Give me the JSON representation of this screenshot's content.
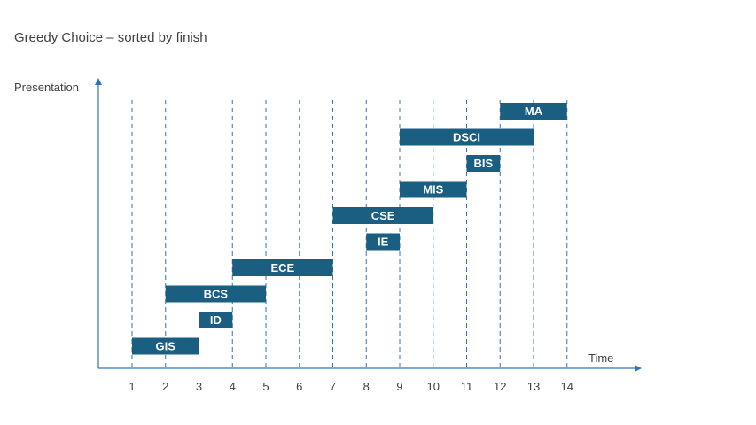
{
  "title": "Greedy Choice – sorted by finish",
  "y_label": "Presentation",
  "x_label": "Time",
  "colors": {
    "bar": "#1a5e82",
    "bar_text": "#ffffff",
    "axis": "#2e75b6",
    "gridline": "#2e75b6",
    "text": "#404040"
  },
  "chart_data": {
    "type": "gantt",
    "x_ticks": [
      1,
      2,
      3,
      4,
      5,
      6,
      7,
      8,
      9,
      10,
      11,
      12,
      13,
      14
    ],
    "tasks": [
      {
        "label": "GIS",
        "start": 1,
        "finish": 3
      },
      {
        "label": "ID",
        "start": 3,
        "finish": 4
      },
      {
        "label": "BCS",
        "start": 2,
        "finish": 5
      },
      {
        "label": "ECE",
        "start": 4,
        "finish": 7
      },
      {
        "label": "IE",
        "start": 8,
        "finish": 9
      },
      {
        "label": "CSE",
        "start": 7,
        "finish": 10
      },
      {
        "label": "MIS",
        "start": 9,
        "finish": 11
      },
      {
        "label": "BIS",
        "start": 11,
        "finish": 12
      },
      {
        "label": "DSCI",
        "start": 9,
        "finish": 13
      },
      {
        "label": "MA",
        "start": 12,
        "finish": 14
      }
    ]
  }
}
